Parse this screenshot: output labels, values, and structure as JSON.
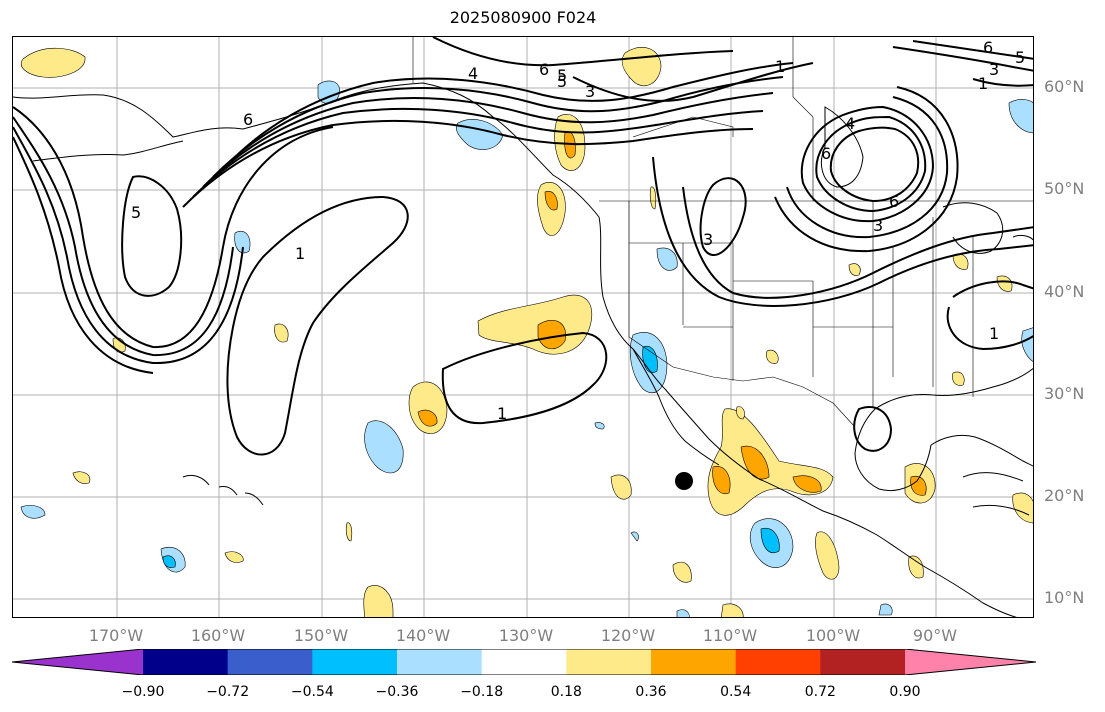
{
  "title": "2025080900 F024",
  "lat_labels": [
    "60°N",
    "50°N",
    "40°N",
    "30°N",
    "20°N",
    "10°N"
  ],
  "lon_labels": [
    "170°W",
    "160°W",
    "150°W",
    "140°W",
    "130°W",
    "120°W",
    "110°W",
    "100°W",
    "90°W"
  ],
  "contour_labels": [
    "6",
    "5",
    "3",
    "1",
    "4",
    "6",
    "5",
    "3",
    "1",
    "4",
    "6",
    "5",
    "3",
    "6",
    "1",
    "1",
    "3",
    "5",
    "6",
    "1"
  ],
  "colorbar": {
    "ticks": [
      "−0.90",
      "−0.72",
      "−0.54",
      "−0.36",
      "−0.18",
      "0.18",
      "0.36",
      "0.54",
      "0.72",
      "0.90"
    ],
    "colors": [
      "#9a32cd",
      "#00008b",
      "#3a5fcd",
      "#00bfff",
      "#aadfff",
      "#ffffff",
      "#ffea8a",
      "#ffa500",
      "#ff4000",
      "#b22222",
      "#ff82ab"
    ]
  },
  "marker": "storm-center-dot"
}
